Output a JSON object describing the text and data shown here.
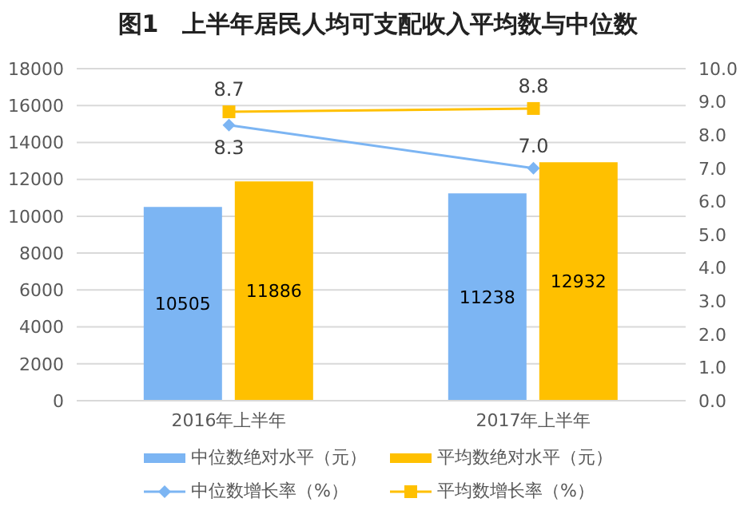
{
  "chart_data": {
    "type": "bar",
    "title": "图1　上半年居民人均可支配收入平均数与中位数",
    "categories": [
      "2016年上半年",
      "2017年上半年"
    ],
    "series": [
      {
        "name": "中位数绝对水平（元）",
        "color": "#7cb5f3",
        "values": [
          10505,
          11238
        ]
      },
      {
        "name": "平均数绝对水平（元）",
        "color": "#ffc000",
        "values": [
          11886,
          12932
        ]
      },
      {
        "name": "中位数增长率（%）",
        "type": "line",
        "axis": "y2",
        "marker": "diamond",
        "color": "#7cb5f3",
        "values": [
          8.3,
          7.0
        ],
        "value_labels": [
          "8.3",
          "7.0"
        ]
      },
      {
        "name": "平均数增长率（%）",
        "type": "line",
        "axis": "y2",
        "marker": "square",
        "color": "#ffc000",
        "values": [
          8.7,
          8.8
        ],
        "value_labels": [
          "8.7",
          "8.8"
        ]
      }
    ],
    "ylim": [
      0,
      18000
    ],
    "yticks": [
      0,
      2000,
      4000,
      6000,
      8000,
      10000,
      12000,
      14000,
      16000,
      18000
    ],
    "y2lim": [
      0,
      10
    ],
    "y2ticks": [
      {
        "value": 0,
        "label": "0.0"
      },
      {
        "value": 1,
        "label": "1.0"
      },
      {
        "value": 2,
        "label": "2.0"
      },
      {
        "value": 3,
        "label": "3.0"
      },
      {
        "value": 4,
        "label": "4.0"
      },
      {
        "value": 5,
        "label": "5.0"
      },
      {
        "value": 6,
        "label": "6.0"
      },
      {
        "value": 7,
        "label": "7.0"
      },
      {
        "value": 8,
        "label": "8.0"
      },
      {
        "value": 9,
        "label": "9.0"
      },
      {
        "value": 10,
        "label": "10.0"
      }
    ],
    "grid": "y",
    "legend": "bottom",
    "data_labels": true
  }
}
